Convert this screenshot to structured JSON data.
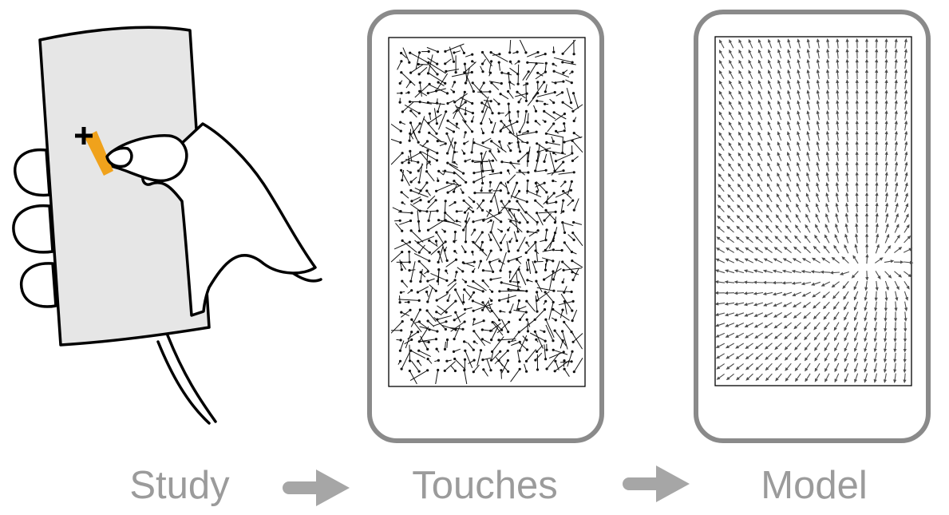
{
  "captions": {
    "study": "Study",
    "touches": "Touches",
    "model": "Model"
  },
  "colors": {
    "caption": "#9b9b9b",
    "arrow": "#a6a6a6",
    "phone_outline": "#8a8a8a",
    "phone_body": "#e6e6e6",
    "target_highlight": "#f0a21c",
    "touch_vectors": "#111111",
    "model_vectors": "#4d4d4d"
  },
  "icons": {
    "arrow": "right-arrow-icon",
    "target": "plus-crosshair-icon"
  },
  "grids": {
    "touches": {
      "columns": 20,
      "rows": 33
    },
    "model": {
      "columns": 20,
      "rows": 33
    }
  }
}
